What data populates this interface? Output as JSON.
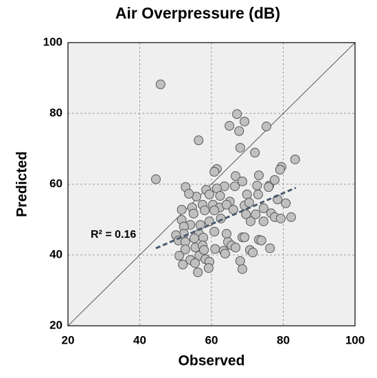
{
  "chart_data": {
    "type": "scatter",
    "title": "Air Overpressure (dB)",
    "x_label": "Observed",
    "y_label": "Predicted",
    "annotation": "R² = 0.16",
    "xlim": [
      20,
      100
    ],
    "ylim": [
      20,
      100
    ],
    "xticks": [
      20,
      40,
      60,
      80,
      100
    ],
    "yticks": [
      20,
      40,
      60,
      80,
      100
    ],
    "grid": true,
    "color": "#c0c0c0",
    "x": [
      45.8,
      44.5,
      56.4,
      65,
      67.1,
      69.2,
      67.7,
      68,
      75.3,
      72.1,
      83.3,
      79.5,
      79.1,
      61.5,
      60.8,
      66.7,
      73.2,
      68.6,
      76.1,
      77.6,
      72.7,
      75.9,
      52.8,
      58.5,
      63.6,
      66.5,
      61.5,
      59.4,
      55.8,
      53.7,
      62.4,
      65.1,
      69.9,
      73,
      78.4,
      80.7,
      69.2,
      70.5,
      60.4,
      62.3,
      64.2,
      57.5,
      54.6,
      51.7,
      51.7,
      55,
      58.1,
      60.8,
      66.1,
      74.5,
      76.6,
      72.3,
      69.6,
      70.9,
      74.5,
      77.6,
      82.2,
      79.3,
      62.6,
      59.4,
      56.9,
      54.1,
      52.3,
      56.5,
      52.3,
      50.1,
      50.8,
      52.7,
      55.2,
      57.7,
      60.8,
      64.2,
      64.6,
      68.6,
      69.2,
      73.2,
      52.7,
      55.5,
      57.5,
      61,
      63.4,
      65.6,
      66.7,
      70.7,
      76.3,
      73.9,
      51,
      54.1,
      56.6,
      58.3,
      59.4,
      52,
      55.4,
      59.2,
      56.2,
      68,
      68.6,
      71.5,
      63.8,
      57.9
    ],
    "values": [
      88.2,
      61.4,
      72.4,
      76.5,
      79.8,
      77.7,
      75,
      70.3,
      76.3,
      68.9,
      67,
      64.9,
      64.1,
      64.3,
      63.5,
      62.3,
      62.5,
      60.8,
      59.6,
      61.2,
      59.6,
      59.2,
      59.2,
      58.4,
      59.4,
      59.4,
      58.8,
      57.1,
      56.5,
      57.3,
      56.7,
      55.1,
      57.1,
      57.1,
      55.7,
      54.6,
      54,
      54.8,
      54.2,
      53.4,
      54.2,
      54.2,
      53.4,
      52.8,
      49.9,
      51.7,
      52.6,
      52.6,
      52.8,
      53.2,
      51.8,
      51.5,
      51.5,
      49.5,
      49.5,
      50.7,
      50.7,
      50.3,
      50.3,
      49.5,
      48.5,
      48.5,
      48,
      46,
      46,
      45.6,
      44.1,
      43.7,
      44.7,
      44.9,
      46.6,
      46,
      43.7,
      45,
      45,
      44.3,
      41.6,
      42.1,
      42.7,
      41.7,
      41.2,
      42.7,
      42.1,
      41.4,
      41.9,
      44.1,
      39.8,
      38.6,
      39.8,
      38.8,
      38.1,
      37.3,
      37.7,
      36.3,
      35.1,
      38.3,
      36,
      40.7,
      40.4,
      41.4
    ],
    "trendline": {
      "x": [
        44.5,
        83.5
      ],
      "values": [
        41.9,
        59
      ],
      "color": "#4a5a70"
    }
  }
}
